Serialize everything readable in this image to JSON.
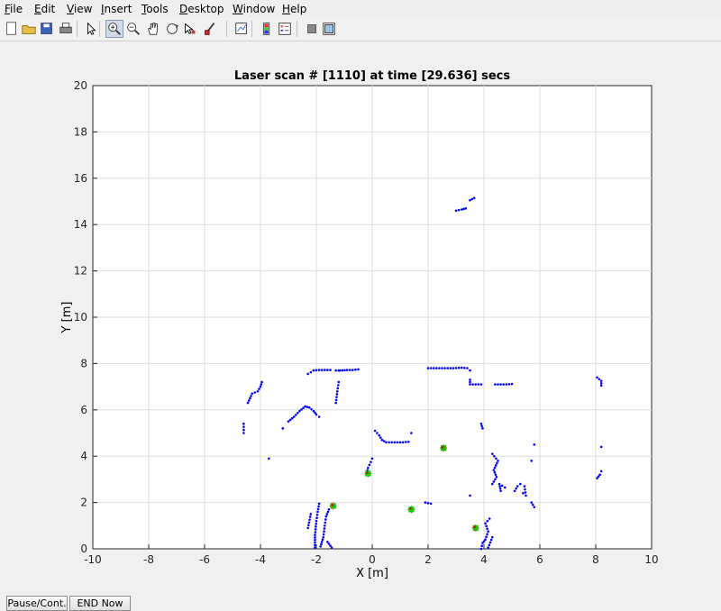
{
  "menubar": {
    "items": [
      {
        "label": "File",
        "key": "F",
        "rest": "ile"
      },
      {
        "label": "Edit",
        "key": "E",
        "rest": "dit"
      },
      {
        "label": "View",
        "key": "V",
        "rest": "iew"
      },
      {
        "label": "Insert",
        "key": "I",
        "rest": "nsert"
      },
      {
        "label": "Tools",
        "key": "T",
        "rest": "ools"
      },
      {
        "label": "Desktop",
        "key": "D",
        "rest": "esktop"
      },
      {
        "label": "Window",
        "key": "W",
        "rest": "indow"
      },
      {
        "label": "Help",
        "key": "H",
        "rest": "elp"
      }
    ]
  },
  "toolbar": {
    "buttons": [
      {
        "icon": "new-figure-icon"
      },
      {
        "icon": "open-file-icon"
      },
      {
        "icon": "save-icon"
      },
      {
        "icon": "print-icon"
      },
      {
        "icon": "edit-plot-arrow-icon"
      },
      {
        "icon": "zoom-in-icon",
        "active": true
      },
      {
        "icon": "zoom-out-icon"
      },
      {
        "icon": "pan-hand-icon"
      },
      {
        "icon": "rotate-3d-icon"
      },
      {
        "icon": "data-cursor-icon"
      },
      {
        "icon": "brush-icon"
      },
      {
        "icon": "link-plot-icon"
      },
      {
        "icon": "colorbar-icon"
      },
      {
        "icon": "legend-icon"
      },
      {
        "icon": "hide-plot-tools-icon"
      },
      {
        "icon": "show-plot-tools-icon"
      }
    ]
  },
  "bottom_buttons": {
    "pause_label": "Pause/Cont.",
    "end_label": "END Now"
  },
  "colors": {
    "scan_points": "#0000ff",
    "landmark_star": "#00cc00",
    "landmark_fill": "#c8a000",
    "landmark_cross": "#cc0000"
  },
  "chart_data": {
    "type": "scatter",
    "title": "Laser scan # [1110] at time [29.636] secs",
    "xlabel": "X [m]",
    "ylabel": "Y [m]",
    "xlim": [
      -10,
      10
    ],
    "ylim": [
      0,
      20
    ],
    "xticks": [
      -10,
      -8,
      -6,
      -4,
      -2,
      0,
      2,
      4,
      6,
      8,
      10
    ],
    "yticks": [
      0,
      2,
      4,
      6,
      8,
      10,
      12,
      14,
      16,
      18,
      20
    ],
    "grid": true,
    "scan_segments": [
      [
        [
          -4.6,
          5.0
        ],
        [
          -4.6,
          5.4
        ]
      ],
      [
        [
          -4.45,
          6.3
        ],
        [
          -4.3,
          6.7
        ],
        [
          -4.1,
          6.8
        ],
        [
          -4.0,
          7.0
        ],
        [
          -3.95,
          7.2
        ]
      ],
      [
        [
          -3.7,
          3.9
        ]
      ],
      [
        [
          -3.2,
          5.2
        ]
      ],
      [
        [
          -3.0,
          5.5
        ],
        [
          -2.8,
          5.7
        ],
        [
          -2.6,
          5.95
        ],
        [
          -2.4,
          6.15
        ],
        [
          -2.25,
          6.1
        ],
        [
          -2.1,
          5.95
        ],
        [
          -2.0,
          5.8
        ],
        [
          -1.9,
          5.7
        ]
      ],
      [
        [
          -2.3,
          7.55
        ],
        [
          -2.1,
          7.7
        ],
        [
          -1.9,
          7.72
        ],
        [
          -1.7,
          7.72
        ],
        [
          -1.5,
          7.72
        ]
      ],
      [
        [
          -1.3,
          7.7
        ],
        [
          -1.2,
          7.7
        ]
      ],
      [
        [
          -1.15,
          7.7
        ],
        [
          -0.9,
          7.72
        ],
        [
          -0.7,
          7.72
        ],
        [
          -0.5,
          7.75
        ]
      ],
      [
        [
          -1.3,
          6.3
        ],
        [
          -1.25,
          6.8
        ],
        [
          -1.2,
          7.2
        ]
      ],
      [
        [
          -2.05,
          0.05
        ],
        [
          -2.05,
          0.6
        ],
        [
          -2.0,
          1.2
        ],
        [
          -1.95,
          1.6
        ],
        [
          -1.9,
          1.95
        ]
      ],
      [
        [
          -1.85,
          0.1
        ],
        [
          -1.75,
          0.5
        ],
        [
          -1.7,
          1.0
        ],
        [
          -1.65,
          1.4
        ],
        [
          -1.55,
          1.7
        ]
      ],
      [
        [
          -1.45,
          0.05
        ],
        [
          -1.6,
          0.3
        ]
      ],
      [
        [
          -0.2,
          3.2
        ],
        [
          -0.15,
          3.5
        ],
        [
          -0.05,
          3.75
        ],
        [
          0.0,
          3.9
        ]
      ],
      [
        [
          0.1,
          5.1
        ],
        [
          0.25,
          4.9
        ],
        [
          0.35,
          4.7
        ],
        [
          0.5,
          4.6
        ],
        [
          0.7,
          4.6
        ],
        [
          0.9,
          4.6
        ],
        [
          1.1,
          4.6
        ],
        [
          1.3,
          4.62
        ]
      ],
      [
        [
          1.4,
          5.0
        ]
      ],
      [
        [
          1.9,
          2.0
        ],
        [
          2.1,
          1.95
        ]
      ],
      [
        [
          2.0,
          7.8
        ],
        [
          2.3,
          7.8
        ],
        [
          2.6,
          7.8
        ],
        [
          2.9,
          7.8
        ],
        [
          3.2,
          7.82
        ],
        [
          3.4,
          7.8
        ],
        [
          3.5,
          7.7
        ]
      ],
      [
        [
          3.5,
          7.3
        ],
        [
          3.5,
          7.1
        ],
        [
          3.7,
          7.1
        ],
        [
          3.9,
          7.1
        ]
      ],
      [
        [
          4.4,
          7.1
        ],
        [
          4.6,
          7.1
        ],
        [
          4.8,
          7.1
        ],
        [
          5.0,
          7.12
        ]
      ],
      [
        [
          3.0,
          14.6
        ],
        [
          3.2,
          14.65
        ],
        [
          3.35,
          14.7
        ]
      ],
      [
        [
          3.5,
          15.05
        ],
        [
          3.65,
          15.15
        ]
      ],
      [
        [
          3.9,
          5.4
        ],
        [
          3.95,
          5.2
        ]
      ],
      [
        [
          3.5,
          2.3
        ]
      ],
      [
        [
          3.9,
          0.0
        ],
        [
          3.95,
          0.25
        ],
        [
          4.05,
          0.4
        ],
        [
          4.15,
          0.75
        ],
        [
          4.05,
          1.1
        ],
        [
          4.2,
          1.3
        ]
      ],
      [
        [
          4.15,
          0.05
        ],
        [
          4.3,
          0.5
        ]
      ],
      [
        [
          4.3,
          2.8
        ],
        [
          4.45,
          3.1
        ],
        [
          4.35,
          3.4
        ],
        [
          4.5,
          3.8
        ],
        [
          4.3,
          4.1
        ]
      ],
      [
        [
          4.6,
          2.5
        ],
        [
          4.55,
          2.8
        ],
        [
          4.75,
          2.65
        ]
      ],
      [
        [
          5.1,
          2.5
        ],
        [
          5.2,
          2.7
        ],
        [
          5.3,
          2.8
        ]
      ],
      [
        [
          5.4,
          2.4
        ],
        [
          5.5,
          2.3
        ],
        [
          5.45,
          2.7
        ]
      ],
      [
        [
          5.7,
          2.0
        ],
        [
          5.75,
          1.9
        ],
        [
          5.8,
          1.8
        ]
      ],
      [
        [
          5.8,
          4.5
        ]
      ],
      [
        [
          5.7,
          3.8
        ]
      ],
      [
        [
          8.05,
          3.05
        ],
        [
          8.15,
          3.2
        ],
        [
          8.2,
          3.35
        ]
      ],
      [
        [
          8.05,
          7.4
        ],
        [
          8.2,
          7.25
        ],
        [
          8.2,
          7.05
        ]
      ],
      [
        [
          8.2,
          4.4
        ]
      ],
      [
        [
          -2.2,
          1.5
        ],
        [
          -2.3,
          0.9
        ]
      ]
    ],
    "landmarks": [
      {
        "x": -1.4,
        "y": 1.85
      },
      {
        "x": -0.15,
        "y": 3.25
      },
      {
        "x": 1.4,
        "y": 1.7
      },
      {
        "x": 2.55,
        "y": 4.35
      },
      {
        "x": 3.7,
        "y": 0.9
      }
    ]
  }
}
